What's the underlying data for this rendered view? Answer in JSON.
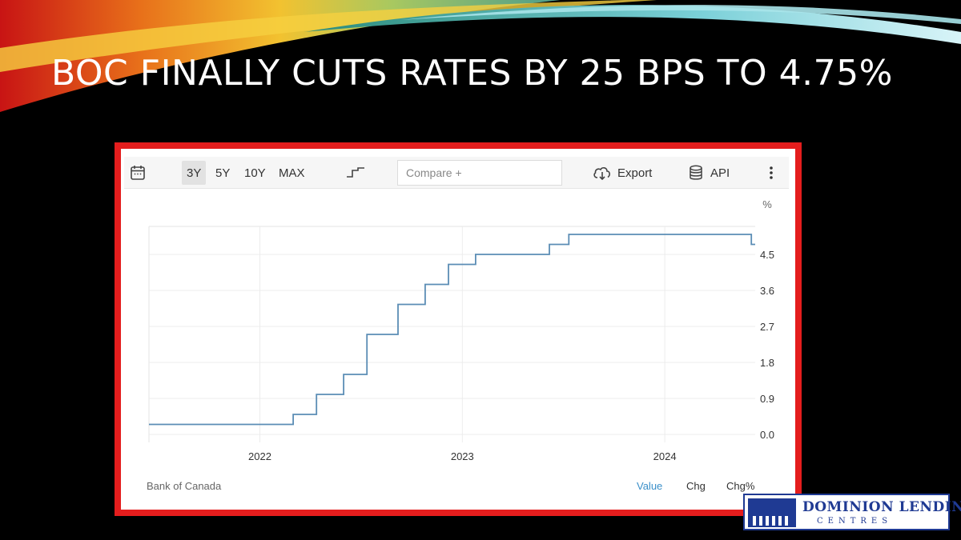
{
  "slide": {
    "title": "BOC FINALLY CUTS RATES BY 25 BPS TO 4.75%"
  },
  "toolbar": {
    "ranges": [
      "3Y",
      "5Y",
      "10Y",
      "MAX"
    ],
    "active_range": "3Y",
    "compare_placeholder": "Compare +",
    "export_label": "Export",
    "api_label": "API",
    "icons": {
      "calendar": "calendar-icon",
      "step_chart": "step-line-icon",
      "export": "cloud-download-icon",
      "api": "database-icon",
      "more": "kebab-menu-icon"
    }
  },
  "footer": {
    "source": "Bank of Canada",
    "tabs": [
      "Value",
      "Chg",
      "Chg%"
    ],
    "active_tab": "Value"
  },
  "logo": {
    "name": "DOMINION LENDING",
    "sub": "CENTRES"
  },
  "chart_data": {
    "type": "line",
    "step": true,
    "ylabel": "%",
    "y_ticks": [
      0.0,
      0.9,
      1.8,
      2.7,
      3.6,
      4.5
    ],
    "y_tick_labels": [
      "0.0",
      "0.9",
      "1.8",
      "2.7",
      "3.6",
      "4.5"
    ],
    "ylim": [
      -0.2,
      5.2
    ],
    "x_ticks": [
      "2022-01-01",
      "2023-01-01",
      "2024-01-01"
    ],
    "x_tick_labels": [
      "2022",
      "2023",
      "2024"
    ],
    "xlim": [
      "2021-06-15",
      "2024-06-12"
    ],
    "grid": true,
    "line_color": "#5b8db5",
    "series": [
      {
        "x": [
          "2021-06-15",
          "2022-03-02",
          "2022-04-13",
          "2022-06-01",
          "2022-07-13",
          "2022-09-07",
          "2022-10-26",
          "2022-12-07",
          "2023-01-25",
          "2023-06-07",
          "2023-07-12",
          "2024-06-05",
          "2024-06-12"
        ],
        "values": [
          0.25,
          0.5,
          1.0,
          1.5,
          2.5,
          3.25,
          3.75,
          4.25,
          4.5,
          4.75,
          5.0,
          4.75,
          4.75
        ]
      }
    ]
  }
}
